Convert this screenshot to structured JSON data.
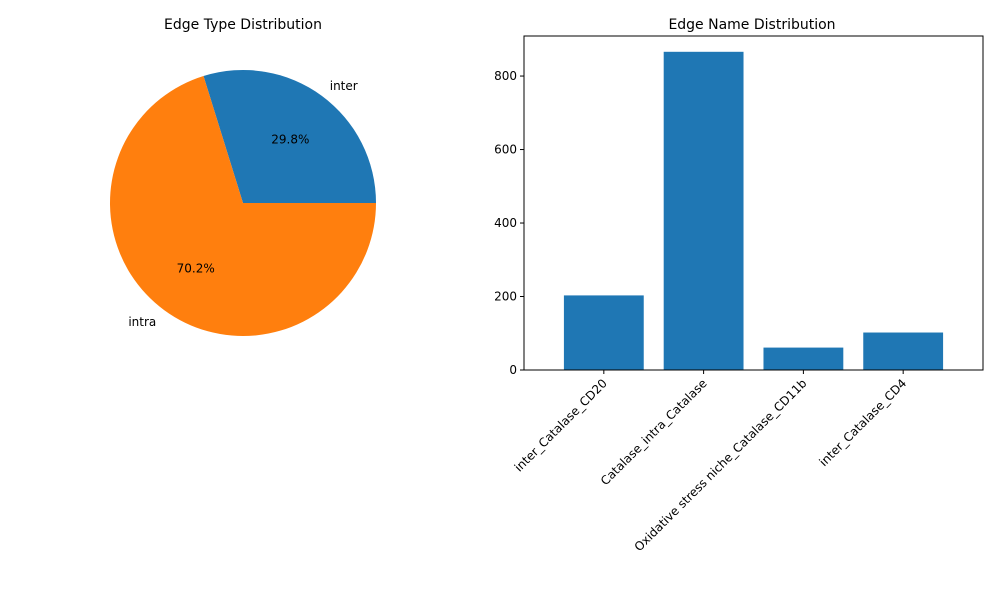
{
  "chart_data": [
    {
      "type": "pie",
      "title": "Edge Type Distribution",
      "labels": [
        "inter",
        "intra"
      ],
      "values": [
        29.8,
        70.2
      ],
      "autopct_labels": [
        "29.8%",
        "70.2%"
      ],
      "colors": [
        "#1f77b4",
        "#ff7f0e"
      ]
    },
    {
      "type": "bar",
      "title": "Edge Name Distribution",
      "categories": [
        "inter_Catalase_CD20",
        "Catalase_intra_Catalase",
        "Oxidative stress niche_Catalase_CD11b",
        "inter_Catalase_CD4"
      ],
      "values": [
        203,
        866,
        61,
        102
      ],
      "ylim": [
        0,
        909
      ],
      "yticks": [
        0,
        200,
        400,
        600,
        800
      ],
      "xlabel": "",
      "ylabel": "",
      "color": "#1f77b4",
      "grid": false
    }
  ]
}
